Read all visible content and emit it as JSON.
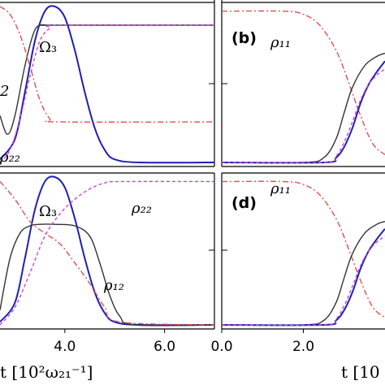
{
  "chart_data": [
    {
      "panel": "a",
      "type": "line",
      "label": "",
      "xlim": [
        2.7,
        7.0
      ],
      "ylim": [
        0,
        1
      ],
      "xticks": [
        "4.0",
        "6.0"
      ],
      "xlabel": "t [10²ω₂₁⁻¹]",
      "annotations": [
        "Ω₃",
        "ρ₂₂",
        "2"
      ],
      "series": [
        {
          "name": "Ω₃",
          "color": "#1f1fb4",
          "style": "solid",
          "x": [
            2.7,
            3.0,
            3.2,
            3.4,
            3.6,
            3.8,
            4.0,
            4.2,
            4.4,
            4.6,
            4.8,
            5.0,
            5.5,
            7.0
          ],
          "y": [
            0.02,
            0.15,
            0.45,
            0.78,
            0.97,
            1.0,
            0.93,
            0.72,
            0.45,
            0.22,
            0.08,
            0.02,
            0.0,
            0.0
          ]
        },
        {
          "name": "black",
          "color": "#333333",
          "style": "solid",
          "x": [
            2.7,
            2.85,
            3.0,
            3.2,
            3.4,
            3.6,
            3.8,
            7.0
          ],
          "y": [
            0.3,
            0.18,
            0.3,
            0.62,
            0.85,
            0.88,
            0.88,
            0.88
          ]
        },
        {
          "name": "red",
          "color": "#e05050",
          "style": "dashdot",
          "x": [
            2.7,
            2.9,
            3.1,
            3.3,
            3.5,
            3.7,
            3.9,
            7.0
          ],
          "y": [
            1.0,
            0.95,
            0.82,
            0.62,
            0.4,
            0.28,
            0.26,
            0.26
          ]
        },
        {
          "name": "ρ₂₂",
          "color": "#cc44cc",
          "style": "dashed",
          "x": [
            2.7,
            2.9,
            3.1,
            3.3,
            3.5,
            3.7,
            3.9,
            7.0
          ],
          "y": [
            0.0,
            0.08,
            0.28,
            0.55,
            0.78,
            0.86,
            0.88,
            0.88
          ]
        }
      ]
    },
    {
      "panel": "b",
      "type": "line",
      "label": "(b)",
      "xlim": [
        0,
        4.0
      ],
      "ylim": [
        0,
        1
      ],
      "annotations": [
        "ρ₁₁"
      ],
      "series": [
        {
          "name": "ρ₁₁",
          "color": "#e05050",
          "style": "dashdot",
          "x": [
            0,
            1.5,
            2.0,
            2.4,
            2.8,
            3.1,
            3.4,
            3.7,
            4.0
          ],
          "y": [
            0.97,
            0.97,
            0.95,
            0.88,
            0.72,
            0.52,
            0.3,
            0.12,
            0.05
          ]
        },
        {
          "name": "black",
          "color": "#333333",
          "style": "solid",
          "x": [
            0,
            2.0,
            2.5,
            2.8,
            3.0,
            3.2,
            3.5,
            3.8,
            4.0
          ],
          "y": [
            0.0,
            0.0,
            0.03,
            0.15,
            0.32,
            0.48,
            0.62,
            0.68,
            0.7
          ]
        },
        {
          "name": "blue",
          "color": "#1f1fb4",
          "style": "solid",
          "x": [
            0,
            2.5,
            2.8,
            3.0,
            3.2,
            3.4,
            3.6,
            3.8,
            4.0
          ],
          "y": [
            0.0,
            0.0,
            0.03,
            0.1,
            0.22,
            0.38,
            0.5,
            0.58,
            0.65
          ]
        },
        {
          "name": "magenta",
          "color": "#cc44cc",
          "style": "dashed",
          "x": [
            0,
            2.5,
            2.8,
            3.0,
            3.2,
            3.4,
            3.6,
            3.8,
            4.0
          ],
          "y": [
            0.0,
            0.0,
            0.04,
            0.13,
            0.26,
            0.4,
            0.5,
            0.56,
            0.6
          ]
        }
      ]
    },
    {
      "panel": "c",
      "type": "line",
      "label": "",
      "xlim": [
        2.7,
        7.0
      ],
      "ylim": [
        0,
        1
      ],
      "xticks": [
        "4.0",
        "6.0"
      ],
      "annotations": [
        "Ω₃",
        "ρ₂₂",
        "ρ₁₂"
      ],
      "series": [
        {
          "name": "Ω₃",
          "color": "#1f1fb4",
          "style": "solid",
          "x": [
            2.7,
            3.0,
            3.2,
            3.4,
            3.6,
            3.8,
            4.0,
            4.2,
            4.4,
            4.6,
            4.8,
            5.0,
            5.5,
            7.0
          ],
          "y": [
            0.02,
            0.15,
            0.45,
            0.78,
            0.97,
            1.0,
            0.93,
            0.72,
            0.45,
            0.22,
            0.08,
            0.02,
            0.0,
            0.0
          ]
        },
        {
          "name": "ρ₁₂",
          "color": "#333333",
          "style": "solid",
          "x": [
            2.7,
            2.9,
            3.1,
            3.3,
            3.5,
            3.8,
            4.2,
            4.5,
            4.7,
            4.9,
            5.1,
            5.4,
            7.0
          ],
          "y": [
            0.1,
            0.45,
            0.62,
            0.67,
            0.68,
            0.68,
            0.67,
            0.6,
            0.42,
            0.2,
            0.06,
            0.0,
            0.0
          ]
        },
        {
          "name": "red",
          "color": "#e05050",
          "style": "dashdot",
          "x": [
            2.7,
            3.0,
            3.3,
            3.6,
            3.9,
            4.2,
            4.5,
            4.8,
            5.1,
            7.0
          ],
          "y": [
            0.97,
            0.85,
            0.7,
            0.62,
            0.55,
            0.42,
            0.28,
            0.12,
            0.02,
            0.0
          ]
        },
        {
          "name": "ρ₂₂",
          "color": "#cc44cc",
          "style": "dashed",
          "x": [
            2.7,
            3.0,
            3.3,
            3.6,
            3.9,
            4.2,
            4.5,
            4.8,
            5.1,
            7.0
          ],
          "y": [
            0.0,
            0.12,
            0.35,
            0.6,
            0.75,
            0.85,
            0.92,
            0.96,
            0.97,
            0.97
          ]
        }
      ]
    },
    {
      "panel": "d",
      "type": "line",
      "label": "(d)",
      "xlim": [
        0,
        4.0
      ],
      "ylim": [
        0,
        1
      ],
      "xticks": [
        "0.0",
        "2.0"
      ],
      "xlabel": "t [10",
      "annotations": [
        "ρ₁₁"
      ],
      "series": [
        {
          "name": "ρ₁₁",
          "color": "#e05050",
          "style": "dashdot",
          "x": [
            0,
            1.5,
            2.0,
            2.4,
            2.8,
            3.1,
            3.4,
            3.7,
            4.0
          ],
          "y": [
            0.97,
            0.97,
            0.95,
            0.88,
            0.72,
            0.52,
            0.3,
            0.12,
            0.05
          ]
        },
        {
          "name": "black",
          "color": "#333333",
          "style": "solid",
          "x": [
            0,
            2.0,
            2.5,
            2.8,
            3.0,
            3.2,
            3.5,
            3.8,
            4.0
          ],
          "y": [
            0.0,
            0.0,
            0.03,
            0.15,
            0.32,
            0.48,
            0.62,
            0.68,
            0.7
          ]
        },
        {
          "name": "blue",
          "color": "#1f1fb4",
          "style": "solid",
          "x": [
            0,
            2.5,
            2.8,
            3.0,
            3.2,
            3.4,
            3.6,
            3.8,
            4.0
          ],
          "y": [
            0.0,
            0.0,
            0.03,
            0.1,
            0.22,
            0.38,
            0.5,
            0.58,
            0.65
          ]
        },
        {
          "name": "magenta",
          "color": "#cc44cc",
          "style": "dashed",
          "x": [
            0,
            2.5,
            2.8,
            3.0,
            3.2,
            3.4,
            3.6,
            3.8,
            4.0
          ],
          "y": [
            0.0,
            0.0,
            0.04,
            0.13,
            0.26,
            0.4,
            0.5,
            0.56,
            0.6
          ]
        }
      ]
    }
  ]
}
